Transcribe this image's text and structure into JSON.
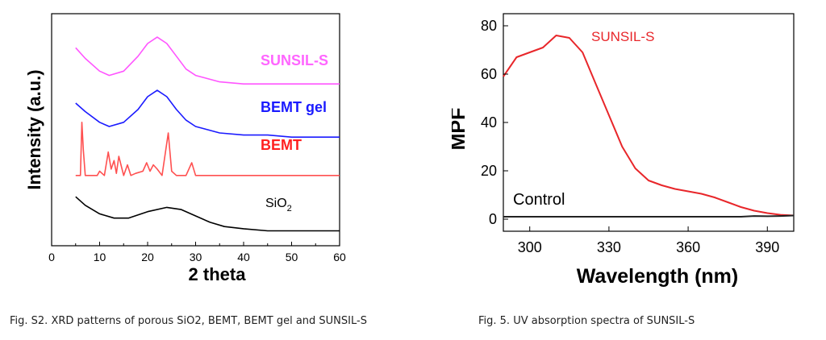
{
  "chart_data": [
    {
      "type": "line",
      "xlabel": "2 theta",
      "ylabel": "Intensity (a.u.)",
      "xlim": [
        0,
        60
      ],
      "x_ticks": [
        0,
        10,
        20,
        30,
        40,
        50,
        60
      ],
      "y_ticks": [],
      "series": [
        {
          "name": "SUNSIL-S",
          "color": "#ff55ff",
          "x": [
            5,
            7,
            10,
            12,
            15,
            18,
            20,
            22,
            24,
            26,
            28,
            30,
            35,
            40,
            45,
            50,
            55,
            60
          ],
          "y": [
            8.0,
            7.5,
            6.9,
            6.7,
            6.9,
            7.6,
            8.2,
            8.5,
            8.2,
            7.6,
            7.0,
            6.7,
            6.4,
            6.3,
            6.3,
            6.3,
            6.3,
            6.3
          ]
        },
        {
          "name": "BEMT gel",
          "color": "#1a1aff",
          "x": [
            5,
            7,
            10,
            12,
            15,
            18,
            20,
            22,
            24,
            26,
            28,
            30,
            35,
            40,
            45,
            50,
            55,
            60
          ],
          "y": [
            5.4,
            5.0,
            4.5,
            4.3,
            4.5,
            5.1,
            5.7,
            6.0,
            5.7,
            5.1,
            4.6,
            4.3,
            4.0,
            3.9,
            3.9,
            3.8,
            3.8,
            3.8
          ]
        },
        {
          "name": "BEMT",
          "color": "#ff5050",
          "x": [
            5,
            6,
            6.3,
            6.6,
            7,
            8,
            9.5,
            10,
            11,
            11.8,
            12.4,
            13,
            13.5,
            14,
            15,
            15.8,
            16.5,
            17.5,
            19,
            19.8,
            20.5,
            21.2,
            22,
            23,
            24.3,
            25,
            26,
            28,
            29.2,
            30,
            35,
            40,
            45,
            50,
            55,
            60
          ],
          "y": [
            2.0,
            2.0,
            4.5,
            3.2,
            2.0,
            2.0,
            2.0,
            2.2,
            2.0,
            3.1,
            2.3,
            2.7,
            2.1,
            2.9,
            2.0,
            2.5,
            2.0,
            2.1,
            2.2,
            2.6,
            2.2,
            2.5,
            2.3,
            2.0,
            4.0,
            2.2,
            2.0,
            2.0,
            2.6,
            2.0,
            2.0,
            2.0,
            2.0,
            2.0,
            2.0,
            2.0
          ]
        },
        {
          "name": "SiO2",
          "color": "#000000",
          "x": [
            5,
            7,
            10,
            13,
            16,
            20,
            24,
            27,
            30,
            33,
            36,
            40,
            45,
            50,
            55,
            60
          ],
          "y": [
            1.0,
            0.6,
            0.2,
            0.0,
            0.0,
            0.3,
            0.5,
            0.4,
            0.1,
            -0.2,
            -0.4,
            -0.5,
            -0.6,
            -0.6,
            -0.6,
            -0.6
          ]
        }
      ],
      "labels": {
        "sunsil": "SUNSIL-S",
        "gel": "BEMT gel",
        "bemt": "BEMT",
        "sio2_main": "SiO",
        "sio2_sub": "2"
      }
    },
    {
      "type": "line",
      "xlabel": "Wavelength (nm)",
      "ylabel": "MPF",
      "xlim": [
        290,
        400
      ],
      "ylim": [
        -5,
        85
      ],
      "x_ticks": [
        300,
        330,
        360,
        390
      ],
      "y_ticks": [
        0,
        20,
        40,
        60,
        80
      ],
      "series": [
        {
          "name": "SUNSIL-S",
          "color": "#e8262a",
          "x": [
            290,
            295,
            300,
            305,
            310,
            315,
            320,
            325,
            330,
            335,
            340,
            345,
            350,
            355,
            360,
            365,
            370,
            375,
            380,
            385,
            390,
            395,
            400
          ],
          "y": [
            59,
            67,
            69,
            71,
            76,
            75,
            69,
            56,
            43,
            30,
            21,
            16,
            14,
            12.5,
            11.5,
            10.5,
            9,
            7,
            5,
            3.5,
            2.5,
            1.8,
            1.5
          ]
        },
        {
          "name": "Control",
          "color": "#222222",
          "x": [
            290,
            320,
            350,
            370,
            380,
            385,
            390,
            395,
            400
          ],
          "y": [
            1,
            1,
            1,
            1,
            1,
            1.3,
            1.2,
            1.3,
            1.5
          ]
        }
      ],
      "labels": {
        "sunsil": "SUNSIL-S",
        "control": "Control"
      }
    }
  ],
  "captions": {
    "left": "Fig. S2. XRD patterns of porous SiO2, BEMT, BEMT gel and SUNSIL-S",
    "right": "Fig. 5. UV absorption spectra of SUNSIL-S"
  }
}
